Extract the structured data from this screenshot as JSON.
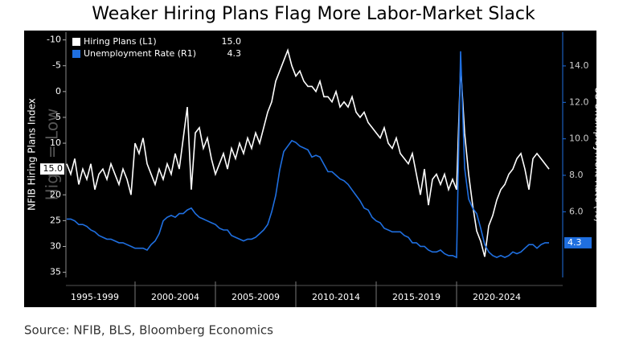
{
  "chart_data": {
    "type": "line",
    "title": "Weaker Hiring Plans Flag More Labor-Market Slack",
    "source": "Source: NFIB, BLS, Bloomberg Economics",
    "annotation": "High = Low",
    "ylabel": "NFIB Hiring Plans Index",
    "y2label": "US Unemployment Rate (%)",
    "x": [
      1995.75,
      1996,
      1996.25,
      1996.5,
      1996.75,
      1997,
      1997.25,
      1997.5,
      1997.75,
      1998,
      1998.25,
      1998.5,
      1998.75,
      1999,
      1999.25,
      1999.5,
      1999.75,
      2000,
      2000.25,
      2000.5,
      2000.75,
      2001,
      2001.25,
      2001.5,
      2001.75,
      2002,
      2002.25,
      2002.5,
      2002.75,
      2003,
      2003.25,
      2003.5,
      2003.75,
      2004,
      2004.25,
      2004.5,
      2004.75,
      2005,
      2005.25,
      2005.5,
      2005.75,
      2006,
      2006.25,
      2006.5,
      2006.75,
      2007,
      2007.25,
      2007.5,
      2007.75,
      2008,
      2008.25,
      2008.5,
      2008.75,
      2009,
      2009.25,
      2009.5,
      2009.75,
      2010,
      2010.25,
      2010.5,
      2010.75,
      2011,
      2011.25,
      2011.5,
      2011.75,
      2012,
      2012.25,
      2012.5,
      2012.75,
      2013,
      2013.25,
      2013.5,
      2013.75,
      2014,
      2014.25,
      2014.5,
      2014.75,
      2015,
      2015.25,
      2015.5,
      2015.75,
      2016,
      2016.25,
      2016.5,
      2016.75,
      2017,
      2017.25,
      2017.5,
      2017.75,
      2018,
      2018.25,
      2018.5,
      2018.75,
      2019,
      2019.25,
      2019.5,
      2019.75,
      2020,
      2020.25,
      2020.5,
      2020.75,
      2021,
      2021.25,
      2021.5,
      2021.75,
      2022,
      2022.25,
      2022.5,
      2022.75,
      2023,
      2023.25,
      2023.5,
      2023.75,
      2024,
      2024.25,
      2024.5,
      2024.75,
      2025,
      2025.25,
      2025.5,
      2025.75
    ],
    "series": [
      {
        "name": "Hiring Plans (L1)",
        "last_value_label": "15.0",
        "color": "#ffffff",
        "axis": "y",
        "values": [
          14,
          16,
          13,
          18,
          15,
          17,
          14,
          19,
          16,
          15,
          17,
          14,
          16,
          18,
          15,
          17,
          20,
          10,
          12,
          9,
          14,
          16,
          18,
          15,
          17,
          14,
          16,
          12,
          15,
          9,
          3,
          19,
          8,
          7,
          11,
          9,
          13,
          16,
          14,
          12,
          15,
          11,
          13,
          10,
          12,
          9,
          11,
          8,
          10,
          7,
          4,
          2,
          -2,
          -4,
          -6,
          -8,
          -5,
          -3,
          -4,
          -2,
          -1,
          -1,
          0,
          -2,
          1,
          1,
          2,
          0,
          3,
          2,
          3,
          1,
          4,
          5,
          4,
          6,
          7,
          8,
          9,
          7,
          10,
          11,
          9,
          12,
          13,
          14,
          12,
          16,
          20,
          15,
          22,
          17,
          16,
          18,
          16,
          19,
          17,
          19,
          -5,
          8,
          16,
          22,
          27,
          29,
          32,
          26,
          24,
          21,
          19,
          18,
          16,
          15,
          13,
          12,
          15,
          19,
          13,
          12,
          13,
          14,
          15
        ]
      },
      {
        "name": "Unemployment Rate (R1)",
        "last_value_label": "4.3",
        "color": "#1f6fe0",
        "axis": "y2",
        "values": [
          5.6,
          5.6,
          5.5,
          5.3,
          5.3,
          5.2,
          5.0,
          4.9,
          4.7,
          4.6,
          4.5,
          4.5,
          4.4,
          4.3,
          4.3,
          4.2,
          4.1,
          4.0,
          4.0,
          4.0,
          3.9,
          4.2,
          4.4,
          4.8,
          5.5,
          5.7,
          5.8,
          5.7,
          5.9,
          5.9,
          6.1,
          6.2,
          5.9,
          5.7,
          5.6,
          5.5,
          5.4,
          5.3,
          5.1,
          5.0,
          5.0,
          4.7,
          4.6,
          4.5,
          4.4,
          4.5,
          4.5,
          4.6,
          4.8,
          5.0,
          5.3,
          6.0,
          6.9,
          8.3,
          9.3,
          9.6,
          9.9,
          9.8,
          9.6,
          9.5,
          9.4,
          9.0,
          9.1,
          9.0,
          8.6,
          8.2,
          8.2,
          8.0,
          7.8,
          7.7,
          7.5,
          7.2,
          6.9,
          6.6,
          6.2,
          6.1,
          5.7,
          5.5,
          5.4,
          5.1,
          5.0,
          4.9,
          4.9,
          4.9,
          4.7,
          4.6,
          4.3,
          4.3,
          4.1,
          4.1,
          3.9,
          3.8,
          3.8,
          3.9,
          3.7,
          3.6,
          3.6,
          3.5,
          14.8,
          8.4,
          6.7,
          6.2,
          5.9,
          5.1,
          4.2,
          3.8,
          3.6,
          3.5,
          3.6,
          3.5,
          3.6,
          3.8,
          3.7,
          3.8,
          4.0,
          4.2,
          4.2,
          4.0,
          4.2,
          4.3,
          4.3
        ]
      }
    ],
    "xlim": [
      1995.7,
      2026.6
    ],
    "xticks": [
      {
        "value": 1997.5,
        "label": "1995-1999"
      },
      {
        "value": 2002.5,
        "label": "2000-2004"
      },
      {
        "value": 2007.5,
        "label": "2005-2009"
      },
      {
        "value": 2012.5,
        "label": "2010-2014"
      },
      {
        "value": 2017.5,
        "label": "2015-2019"
      },
      {
        "value": 2022.5,
        "label": "2020-2024"
      }
    ],
    "ylim": [
      -11.5,
      36
    ],
    "y_inverted": true,
    "yticks": [
      -10,
      -5,
      0,
      5,
      10,
      20,
      25,
      30,
      35
    ],
    "y2lim": [
      2.4,
      15.85
    ],
    "y2ticks": [
      {
        "value": 6,
        "label": "6.0"
      },
      {
        "value": 8,
        "label": "8.0"
      },
      {
        "value": 10,
        "label": "10.0"
      },
      {
        "value": 12,
        "label": "12.0"
      },
      {
        "value": 14,
        "label": "14.0"
      }
    ],
    "legend": "top-left"
  }
}
